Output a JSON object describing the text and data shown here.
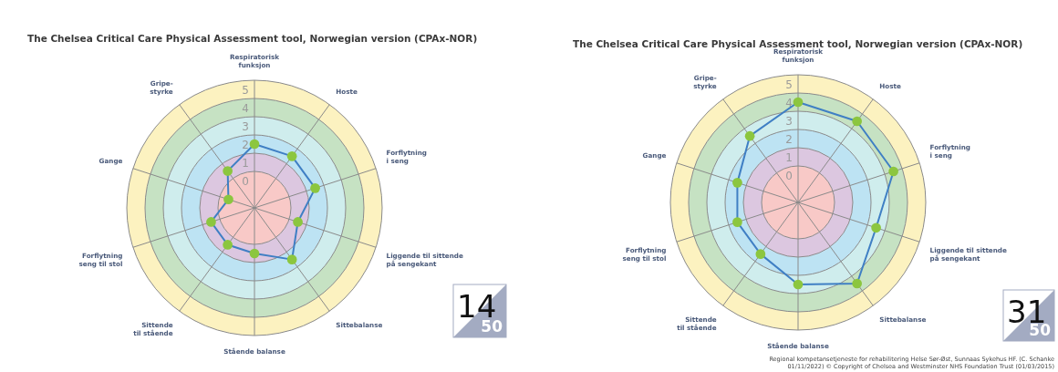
{
  "chart_data": [
    {
      "type": "radar",
      "title": "The Chelsea Critical Care Physical Assessment tool, Norwegian version (CPAx-NOR)",
      "categories": [
        "Respiratorisk\nfunksjon",
        "Hoste",
        "Forflytning\ni seng",
        "Liggende til sittende\npå sengekant",
        "Sittebalanse",
        "Stående balanse",
        "Sittende\ntil stående",
        "Forflytning\nseng til stol",
        "Gange",
        "Gripe-\nstyrke"
      ],
      "series": [
        {
          "color": "#3f7fc4",
          "colors": [
            "#8cc63f",
            "#8cc63f",
            "#8cc63f",
            "#8cc63f",
            "#8cc63f",
            "#8cc63f",
            "#8cc63f",
            "#8cc63f",
            "#8cc63f",
            "#8cc63f"
          ],
          "values": [
            2,
            2,
            2,
            1,
            2,
            1,
            1,
            1,
            0,
            1
          ]
        }
      ],
      "ylim": [
        -1.5,
        5.5
      ],
      "yticks": [
        0,
        1,
        2,
        3,
        4,
        5
      ],
      "grid": true,
      "marker": "circle",
      "annotations": [
        "14",
        "50"
      ]
    },
    {
      "type": "radar",
      "title": "The Chelsea Critical Care Physical Assessment tool, Norwegian version (CPAx-NOR)",
      "categories": [
        "Respiratorisk\nfunksjon",
        "Hoste",
        "Forflytning\ni seng",
        "Liggende til sittende\npå sengekant",
        "Sittebalanse",
        "Stående balanse",
        "Sittende\ntil stående",
        "Forflytning\nseng til stol",
        "Gange",
        "Gripe-\nstyrke"
      ],
      "series": [
        {
          "color": "#3f7fc4",
          "colors": [
            "#8cc63f",
            "#8cc63f",
            "#8cc63f",
            "#8cc63f",
            "#8cc63f",
            "#8cc63f",
            "#8cc63f",
            "#8cc63f",
            "#8cc63f",
            "#8cc63f"
          ],
          "values": [
            4,
            4,
            4,
            3,
            4,
            3,
            2,
            2,
            2,
            3
          ]
        }
      ],
      "ylim": [
        -1.5,
        5.5
      ],
      "yticks": [
        0,
        1,
        2,
        3,
        4,
        5
      ],
      "grid": true,
      "marker": "circle",
      "annotations": [
        "31",
        "50",
        "Regional kompetansetjeneste for rehabilitering Helse Sør-Øst, Sunnaas Sykehus HF. (C. Schanke 01/11/2022) © Copyright of Chelsea and Westminster NHS Foundation Trust (01/03/2015)"
      ]
    }
  ]
}
